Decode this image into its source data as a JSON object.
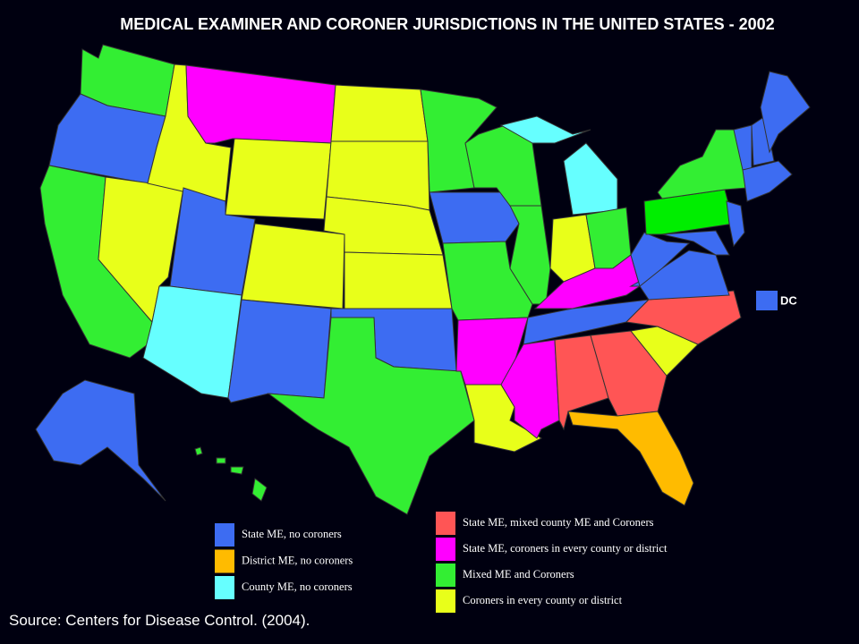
{
  "title": "MEDICAL EXAMINER AND CORONER JURISDICTIONS IN THE UNITED STATES - 2002",
  "dc_label": "DC",
  "legend_left": [
    {
      "label": "State ME, no coroners",
      "color": "#3d6cf2"
    },
    {
      "label": "District ME, no coroners",
      "color": "#ffbb00"
    },
    {
      "label": "County ME, no coroners",
      "color": "#66ffff"
    }
  ],
  "legend_right": [
    {
      "label": "State ME, mixed county ME and Coroners",
      "color": "#ff5555"
    },
    {
      "label": "State ME, coroners in every county or district",
      "color": "#ff00ff"
    },
    {
      "label": "Mixed ME and Coroners",
      "color": "#33ee33"
    },
    {
      "label": "Coroners in every county or district",
      "color": "#e8ff1a"
    }
  ],
  "source": "Source:  Centers for Disease Control. (2004)."
}
